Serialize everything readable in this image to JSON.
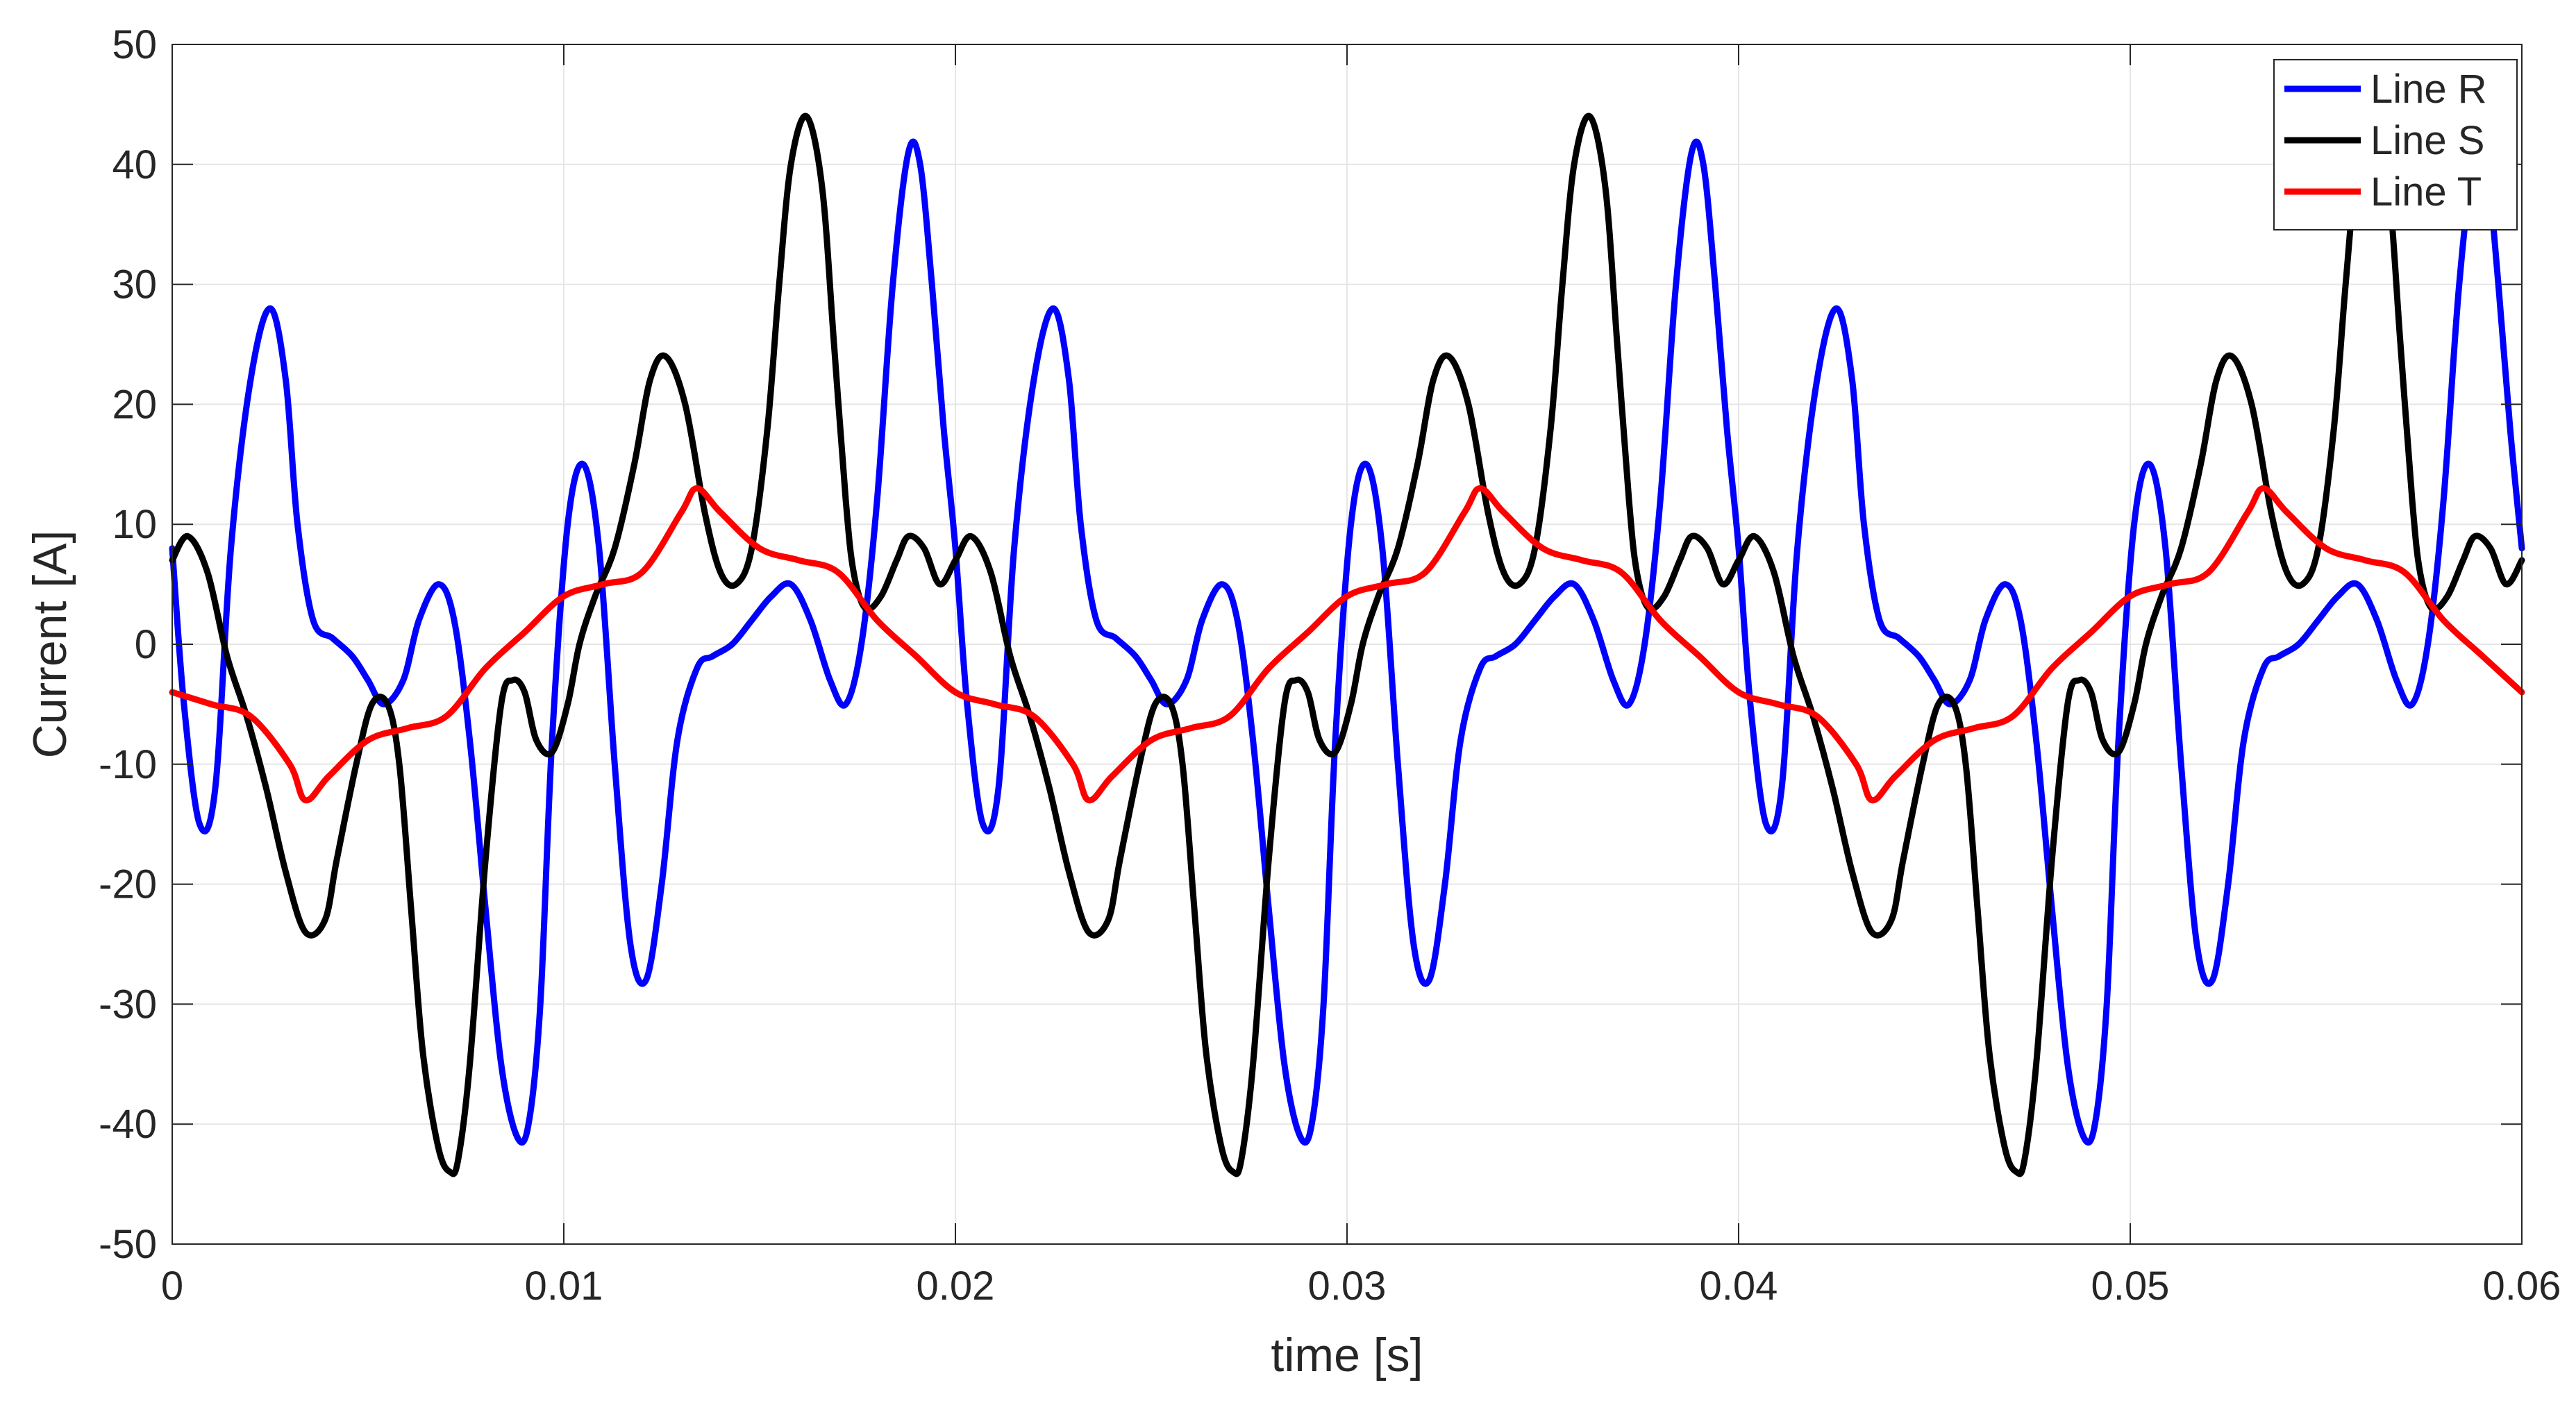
{
  "chart_data": {
    "type": "line",
    "title": "",
    "xlabel": "time [s]",
    "ylabel": "Current [A]",
    "xlim": [
      0,
      0.06
    ],
    "ylim": [
      -50,
      50
    ],
    "xticks": [
      0,
      0.01,
      0.02,
      0.03,
      0.04,
      0.05,
      0.06
    ],
    "xtick_labels": [
      "0",
      "0.01",
      "0.02",
      "0.03",
      "0.04",
      "0.05",
      "0.06"
    ],
    "yticks": [
      -50,
      -40,
      -30,
      -20,
      -10,
      0,
      10,
      20,
      30,
      40,
      50
    ],
    "ytick_labels": [
      "-50",
      "-40",
      "-30",
      "-20",
      "-10",
      "0",
      "10",
      "20",
      "30",
      "40",
      "50"
    ],
    "grid": true,
    "legend_position": "top-right",
    "period": 0.02,
    "series": [
      {
        "name": "Line R",
        "color": "#0000ff",
        "x": [
          0,
          0.0003,
          0.0007,
          0.0011,
          0.0015,
          0.002,
          0.0025,
          0.0029,
          0.0032,
          0.0036,
          0.0041,
          0.0046,
          0.005,
          0.0054,
          0.0059,
          0.0063,
          0.0068,
          0.0072,
          0.0076,
          0.008,
          0.0084,
          0.0088,
          0.0091,
          0.0094,
          0.0097,
          0.0101,
          0.0105,
          0.0109,
          0.0113,
          0.0117,
          0.0121,
          0.0125,
          0.0129,
          0.0134,
          0.0138,
          0.0143,
          0.0148,
          0.0153,
          0.0158,
          0.0163,
          0.0168,
          0.0172,
          0.0176,
          0.018,
          0.0184,
          0.0188,
          0.0191,
          0.0194,
          0.0197,
          0.02
        ],
        "y": [
          8,
          -5,
          -15,
          -12,
          8,
          22,
          28,
          22,
          10,
          2,
          0.5,
          -1,
          -3,
          -5,
          -3,
          2,
          5,
          2,
          -8,
          -22,
          -35,
          -41,
          -40,
          -30,
          -8,
          10,
          15,
          8,
          -10,
          -25,
          -28,
          -20,
          -8,
          -2,
          -1,
          0,
          2,
          4,
          5,
          2,
          -3,
          -5,
          0,
          12,
          30,
          41,
          40,
          30,
          18,
          8
        ]
      },
      {
        "name": "Line S",
        "color": "#000000",
        "x": [
          0,
          0.0004,
          0.0009,
          0.0014,
          0.0019,
          0.0024,
          0.0029,
          0.0034,
          0.0039,
          0.0042,
          0.0047,
          0.0051,
          0.0055,
          0.0058,
          0.0061,
          0.0064,
          0.0068,
          0.0071,
          0.0073,
          0.0076,
          0.008,
          0.0084,
          0.0087,
          0.009,
          0.0093,
          0.0097,
          0.0101,
          0.0104,
          0.0108,
          0.0113,
          0.0118,
          0.0122,
          0.0126,
          0.0131,
          0.0136,
          0.014,
          0.0144,
          0.0148,
          0.0152,
          0.0155,
          0.0158,
          0.0162,
          0.0166,
          0.0169,
          0.0172,
          0.0174,
          0.0177,
          0.0181,
          0.0185,
          0.0188,
          0.0192,
          0.0196,
          0.02
        ],
        "y": [
          7,
          9,
          6,
          -1,
          -6,
          -12,
          -19,
          -24,
          -23,
          -18,
          -10,
          -5,
          -5,
          -10,
          -22,
          -34,
          -42,
          -44,
          -43,
          -35,
          -18,
          -5,
          -3,
          -4,
          -8,
          -9,
          -5,
          0,
          4,
          8,
          15,
          22,
          24,
          20,
          11,
          6,
          5,
          8,
          18,
          30,
          40,
          44,
          38,
          25,
          12,
          6,
          3,
          4,
          7,
          9,
          8,
          5,
          7
        ]
      },
      {
        "name": "Line T",
        "color": "#ff0000",
        "x": [
          0,
          0.001,
          0.002,
          0.003,
          0.0034,
          0.004,
          0.005,
          0.006,
          0.007,
          0.008,
          0.009,
          0.01,
          0.011,
          0.012,
          0.013,
          0.0134,
          0.014,
          0.015,
          0.016,
          0.017,
          0.018,
          0.019,
          0.02
        ],
        "y": [
          -4,
          -5,
          -6,
          -10,
          -13,
          -11,
          -8,
          -7,
          -6,
          -2,
          1,
          4,
          5,
          6,
          11,
          13,
          11,
          8,
          7,
          6,
          2,
          -1,
          -4
        ]
      }
    ]
  }
}
